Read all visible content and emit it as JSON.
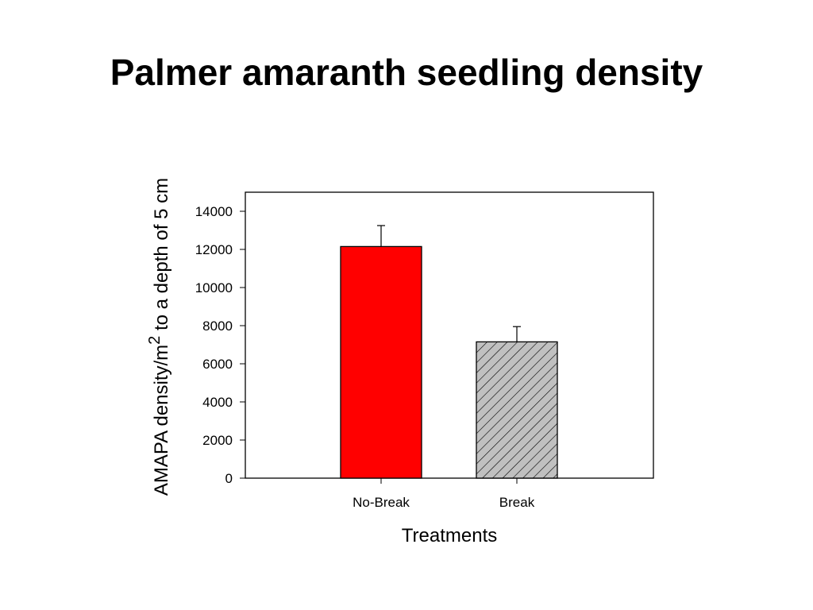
{
  "title": "Palmer amaranth seedling density",
  "chart_data": {
    "type": "bar",
    "title": "Palmer amaranth seedling density",
    "categories": [
      "No-Break",
      "Break"
    ],
    "values": [
      12150,
      7150
    ],
    "error_upper": [
      13250,
      7950
    ],
    "bar_fills": [
      "solid",
      "hatched"
    ],
    "colors": {
      "No-Break": "#ff0000",
      "Break": "#c0c0c0",
      "outline": "#000000"
    },
    "xlabel": "Treatments",
    "ylabel": {
      "main": "AMAPA density/m",
      "superscript": "2",
      "tail": " to a depth of 5 cm"
    },
    "ylim": [
      0,
      15000
    ],
    "yticks": [
      "0",
      "2000",
      "4000",
      "6000",
      "8000",
      "10000",
      "12000",
      "14000"
    ],
    "grid": false,
    "legend": "none"
  }
}
